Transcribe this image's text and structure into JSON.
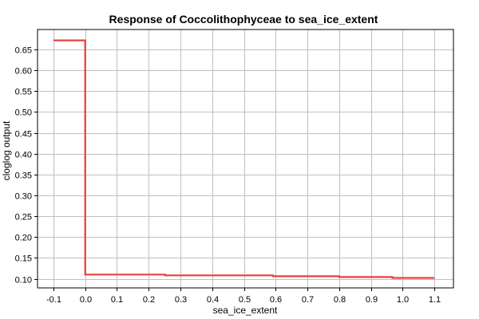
{
  "chart_data": {
    "type": "line",
    "title": "Response of Coccolithophyceae to sea_ice_extent",
    "xlabel": "sea_ice_extent",
    "ylabel": "cloglog output",
    "xlim": [
      -0.15,
      1.16
    ],
    "ylim": [
      0.078,
      0.698
    ],
    "xticks": [
      -0.1,
      0.0,
      0.1,
      0.2,
      0.3,
      0.4,
      0.5,
      0.6,
      0.7,
      0.8,
      0.9,
      1.0,
      1.1
    ],
    "xtick_labels": [
      "-0.1",
      "0.0",
      "0.1",
      "0.2",
      "0.3",
      "0.4",
      "0.5",
      "0.6",
      "0.7",
      "0.8",
      "0.9",
      "1.0",
      "1.1"
    ],
    "yticks": [
      0.1,
      0.15,
      0.2,
      0.25,
      0.3,
      0.35,
      0.4,
      0.45,
      0.5,
      0.55,
      0.6,
      0.65
    ],
    "ytick_labels": [
      "0.10",
      "0.15",
      "0.20",
      "0.25",
      "0.30",
      "0.35",
      "0.40",
      "0.45",
      "0.50",
      "0.55",
      "0.60",
      "0.65"
    ],
    "grid": true,
    "colors": {
      "line": "#e8413c",
      "grid": "#c0c0c0",
      "axis": "#000000"
    },
    "series": [
      {
        "x": [
          -0.1,
          0.0,
          0.0,
          0.252,
          0.252,
          0.592,
          0.592,
          0.8,
          0.8,
          0.968,
          0.968,
          1.1
        ],
        "y": [
          0.672,
          0.672,
          0.11,
          0.11,
          0.108,
          0.108,
          0.106,
          0.106,
          0.104,
          0.104,
          0.102,
          0.102
        ]
      }
    ]
  }
}
